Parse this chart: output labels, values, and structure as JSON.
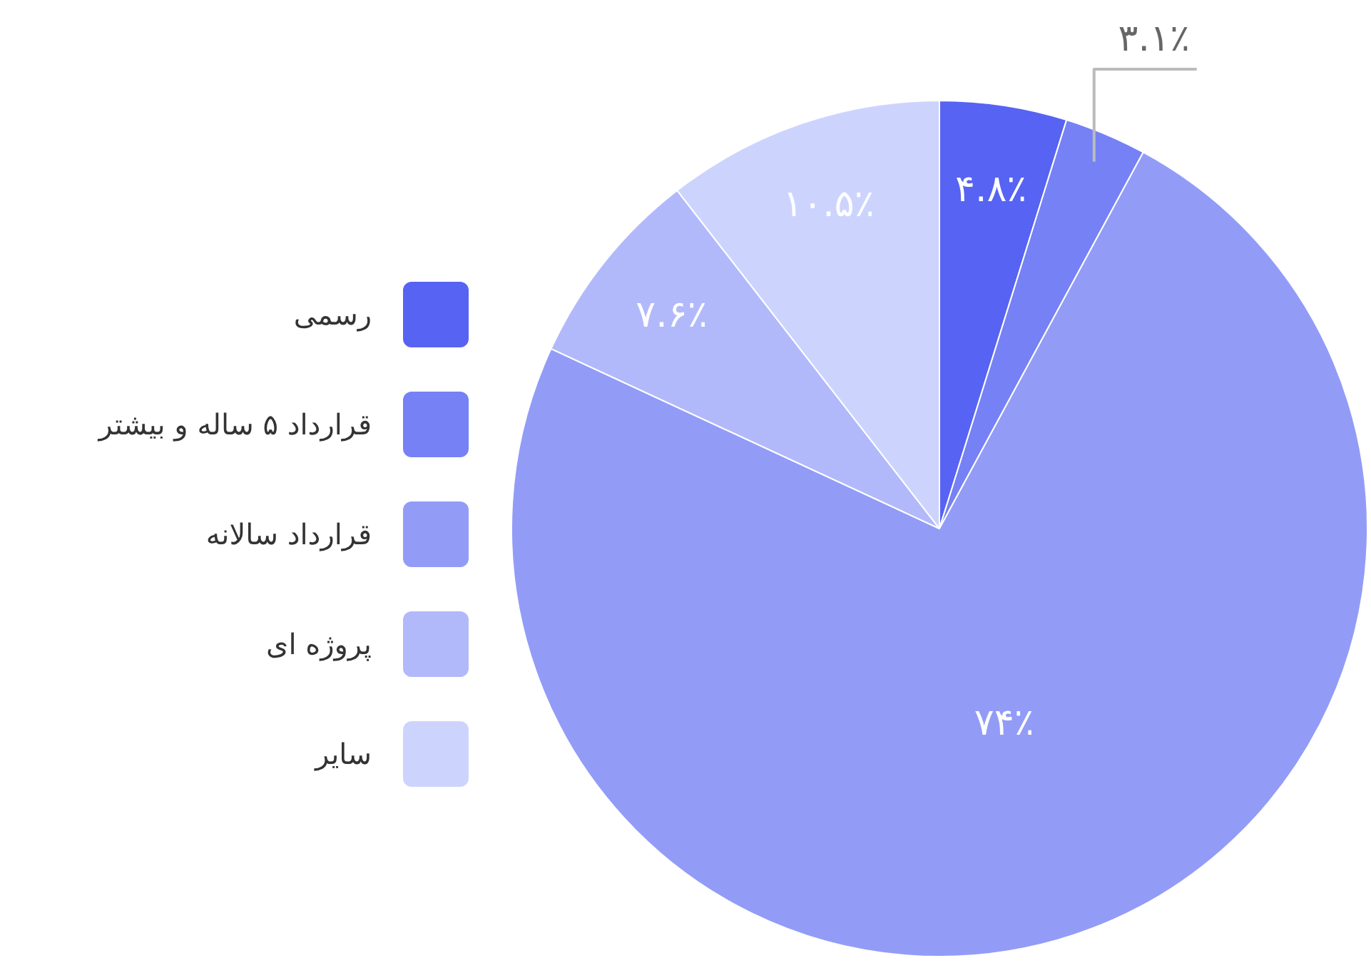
{
  "chart_data": {
    "type": "pie",
    "categories": [
      "رسمی",
      "قرارداد ۵ ساله و بیشتر",
      "قرارداد سالانه",
      "پروژه ای",
      "سایر"
    ],
    "values": [
      4.8,
      3.1,
      74,
      7.6,
      10.5
    ],
    "colors": [
      "#5763f2",
      "#7581f5",
      "#929cf7",
      "#b2b9fa",
      "#ccd4fe"
    ],
    "value_labels": [
      "۴.۸٪",
      "۳.۱٪",
      "۷۴٪",
      "۷.۶٪",
      "۱۰.۵٪"
    ],
    "legend": "left"
  }
}
